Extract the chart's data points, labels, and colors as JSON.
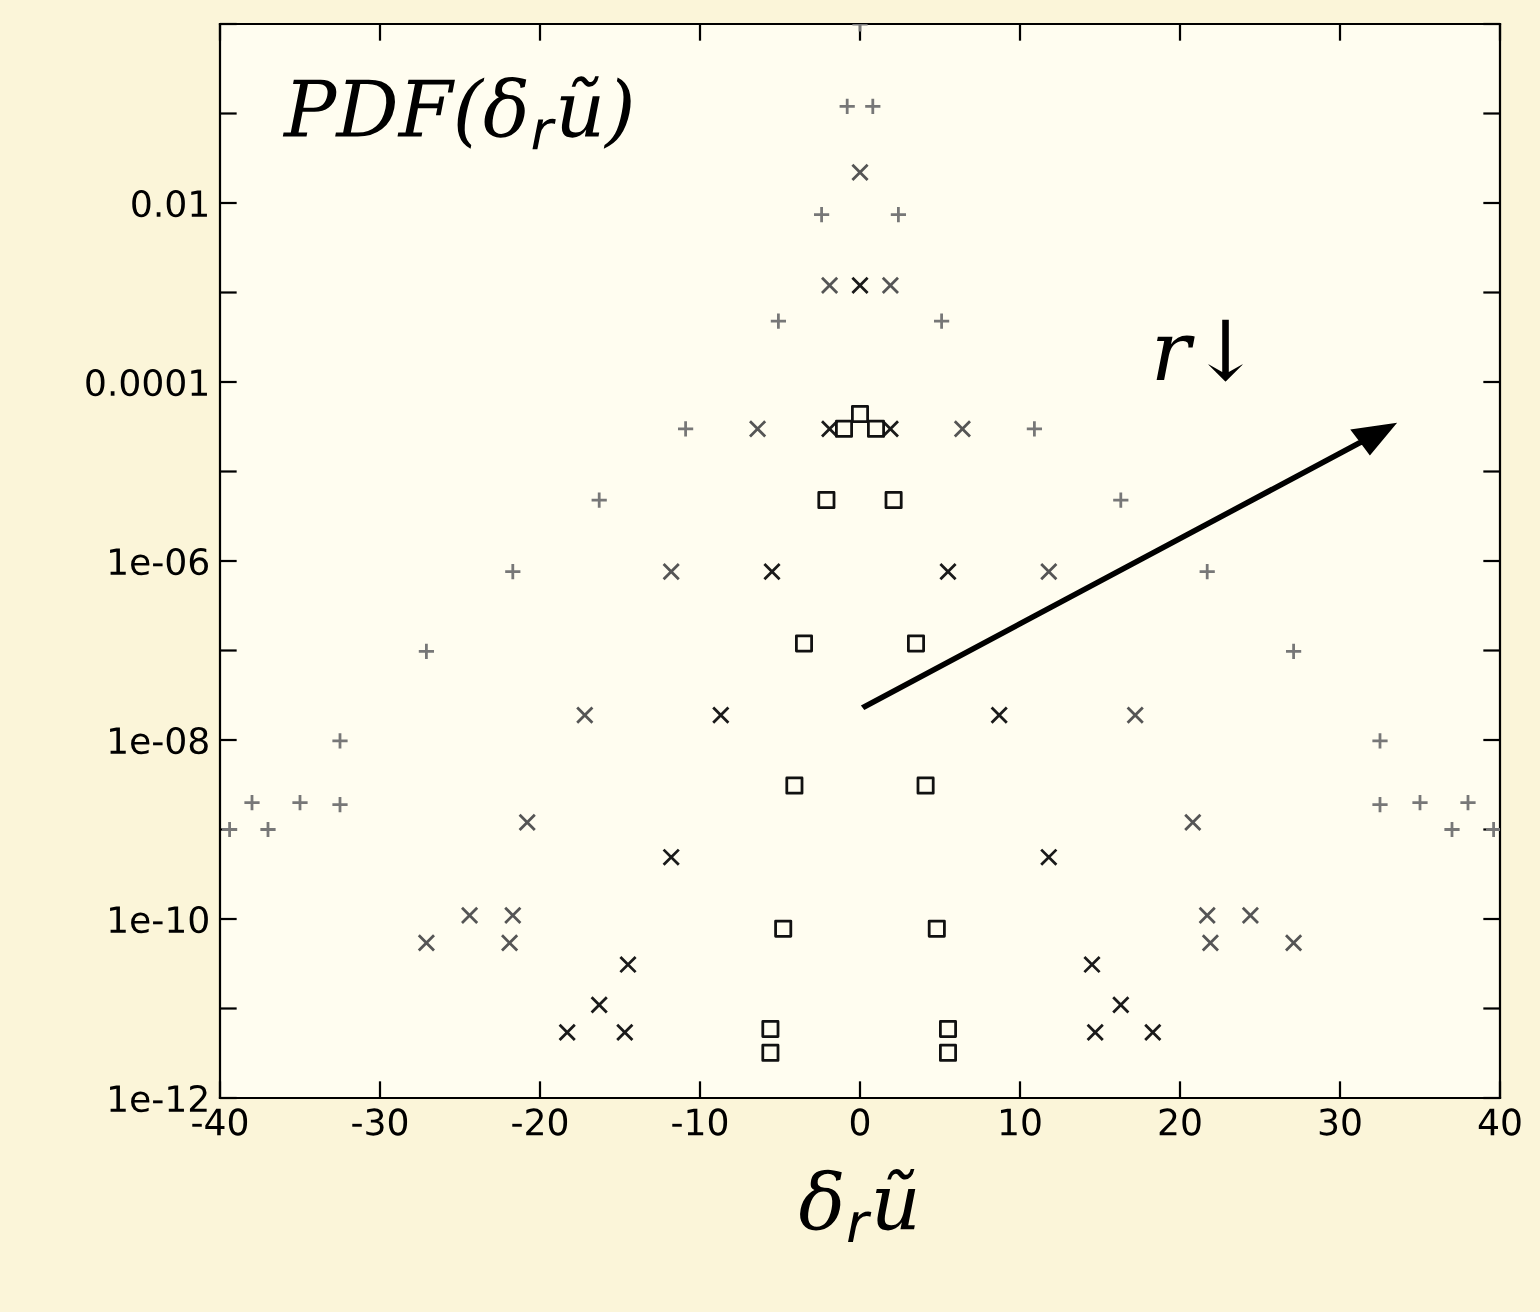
{
  "chart_data": {
    "type": "scatter",
    "title": "PDF(δ$_{r}$ũ)",
    "xlabel": "δ$_{r}$ũ",
    "annotations": [
      "r↓"
    ],
    "log": "y",
    "grid": false,
    "xlim": [
      -40,
      40
    ],
    "xticks": [
      -40,
      -30,
      -20,
      -10,
      0,
      10,
      20,
      30,
      40
    ],
    "ylim": [
      1e-12,
      1
    ],
    "yticks": [
      {
        "value": 1e-12,
        "label": "1e-12"
      },
      {
        "value": 1e-11,
        "label": null
      },
      {
        "value": 1e-10,
        "label": "1e-10"
      },
      {
        "value": 1e-09,
        "label": null
      },
      {
        "value": 1e-08,
        "label": "1e-08"
      },
      {
        "value": 1e-07,
        "label": null
      },
      {
        "value": 1e-06,
        "label": "1e-06"
      },
      {
        "value": 1e-05,
        "label": null
      },
      {
        "value": 0.0001,
        "label": "0.0001"
      },
      {
        "value": 0.001,
        "label": null
      },
      {
        "value": 0.01,
        "label": "0.01"
      },
      {
        "value": 0.1,
        "label": null
      },
      {
        "value": 1,
        "label": null
      }
    ],
    "series": [
      {
        "color": "#777777",
        "marker": "plus",
        "x": [
          -39.4,
          -37,
          -38,
          -35,
          -32.5,
          -32.5,
          -27.1,
          -21.7,
          -16.3,
          -10.9,
          -5.1,
          -2.4,
          -0.8,
          0,
          0.8,
          2.4,
          5.1,
          10.9,
          16.3,
          21.7,
          27.1,
          32.5,
          32.5,
          35,
          38,
          37,
          39.6
        ],
        "values": [
          1e-09,
          1e-09,
          2e-09,
          2e-09,
          1.9e-09,
          9.8e-09,
          9.8e-08,
          7.6e-07,
          4.8e-06,
          3e-05,
          0.00048,
          0.0074,
          0.12,
          1,
          0.12,
          0.0074,
          0.00048,
          3e-05,
          4.8e-06,
          7.6e-07,
          9.8e-08,
          9.8e-09,
          1.9e-09,
          2e-09,
          2e-09,
          1e-09,
          1e-09
        ]
      },
      {
        "color": "#555555",
        "marker": "cross",
        "x": [
          -27.1,
          -24.4,
          -21.9,
          -21.7,
          -20.8,
          -17.2,
          -11.8,
          -6.4,
          -1.9,
          0,
          1.9,
          6.4,
          11.8,
          17.2,
          20.8,
          21.7,
          21.9,
          24.4,
          27.1
        ],
        "values": [
          5.4e-11,
          1.1e-10,
          5.4e-11,
          1.1e-10,
          1.2e-09,
          1.9e-08,
          7.6e-07,
          3e-05,
          0.0012,
          0.022,
          0.0012,
          3e-05,
          7.6e-07,
          1.9e-08,
          1.2e-09,
          1.1e-10,
          5.4e-11,
          1.1e-10,
          5.4e-11
        ]
      },
      {
        "color": "#1a1a1a",
        "marker": "cross",
        "x": [
          -18.3,
          -16.3,
          -14.7,
          -14.5,
          -11.8,
          -8.7,
          -5.5,
          -1.9,
          0,
          1.9,
          5.5,
          8.7,
          11.8,
          14.5,
          14.7,
          16.3,
          18.3
        ],
        "values": [
          5.4e-12,
          1.1e-11,
          5.4e-12,
          3.1e-11,
          4.9e-10,
          1.9e-08,
          7.6e-07,
          3e-05,
          0.0012,
          3e-05,
          7.6e-07,
          1.9e-08,
          4.9e-10,
          3.1e-11,
          5.4e-12,
          1.1e-11,
          5.4e-12
        ]
      },
      {
        "color": "#111111",
        "marker": "square",
        "x": [
          -5.6,
          -5.6,
          -4.8,
          -4.1,
          -3.5,
          -2.1,
          -1,
          0,
          1,
          2.1,
          3.5,
          4.1,
          4.8,
          5.5,
          5.5
        ],
        "values": [
          3.2e-12,
          5.9e-12,
          7.8e-11,
          3.1e-09,
          1.2e-07,
          4.8e-06,
          3e-05,
          4.4e-05,
          3e-05,
          4.8e-06,
          1.2e-07,
          3.1e-09,
          7.8e-11,
          5.9e-12,
          3.2e-12
        ]
      }
    ]
  }
}
